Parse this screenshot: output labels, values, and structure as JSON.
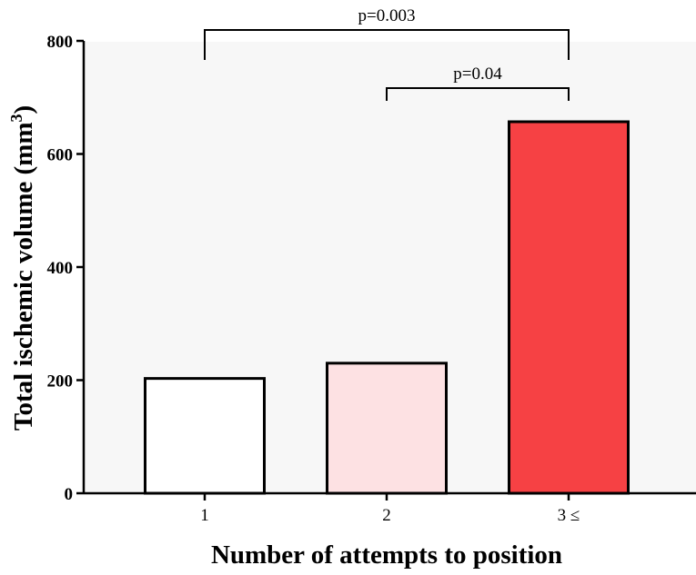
{
  "chart_data": {
    "type": "bar",
    "categories": [
      "1",
      "2",
      "3 ≤"
    ],
    "values": [
      203,
      230,
      657
    ],
    "bar_colors": [
      "#ffffff",
      "#fde1e3",
      "#f64144"
    ],
    "plot_background": "#f7f7f7",
    "xlabel": "Number of attempts to position",
    "ylabel_main": "Total ischemic volume (mm",
    "ylabel_sup": "3",
    "ylabel_close": ")",
    "ylim": [
      0,
      800
    ],
    "yticks": [
      0,
      200,
      400,
      600,
      800
    ],
    "annotations": [
      {
        "label": "p=0.003",
        "from": 0,
        "to": 2,
        "level": 1
      },
      {
        "label": "p=0.04",
        "from": 1,
        "to": 2,
        "level": 0
      }
    ]
  }
}
